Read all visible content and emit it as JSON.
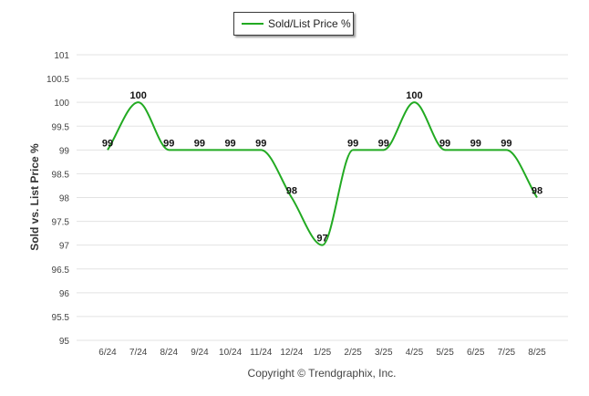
{
  "chart_data": {
    "type": "line",
    "categories": [
      "6/24",
      "7/24",
      "8/24",
      "9/24",
      "10/24",
      "11/24",
      "12/24",
      "1/25",
      "2/25",
      "3/25",
      "4/25",
      "5/25",
      "6/25",
      "7/25",
      "8/25"
    ],
    "series": [
      {
        "name": "Sold/List Price %",
        "values": [
          99,
          100,
          99,
          99,
          99,
          99,
          98,
          97,
          99,
          99,
          100,
          99,
          99,
          99,
          98
        ],
        "labels": [
          "99",
          "100",
          "99",
          "99",
          "99",
          "99",
          "98",
          "97",
          "99",
          "99",
          "100",
          "99",
          "99",
          "99",
          "98"
        ],
        "color": "#22aa22"
      }
    ],
    "ylabel": "Sold vs. List Price %",
    "xlabel": "",
    "ylim": [
      95,
      101
    ],
    "yticks": [
      "95",
      "95.5",
      "96",
      "96.5",
      "97",
      "97.5",
      "98",
      "98.5",
      "99",
      "99.5",
      "100",
      "100.5",
      "101"
    ],
    "grid": true,
    "legend": "top-center"
  },
  "footer": {
    "copyright": "Copyright © Trendgraphix, Inc."
  }
}
